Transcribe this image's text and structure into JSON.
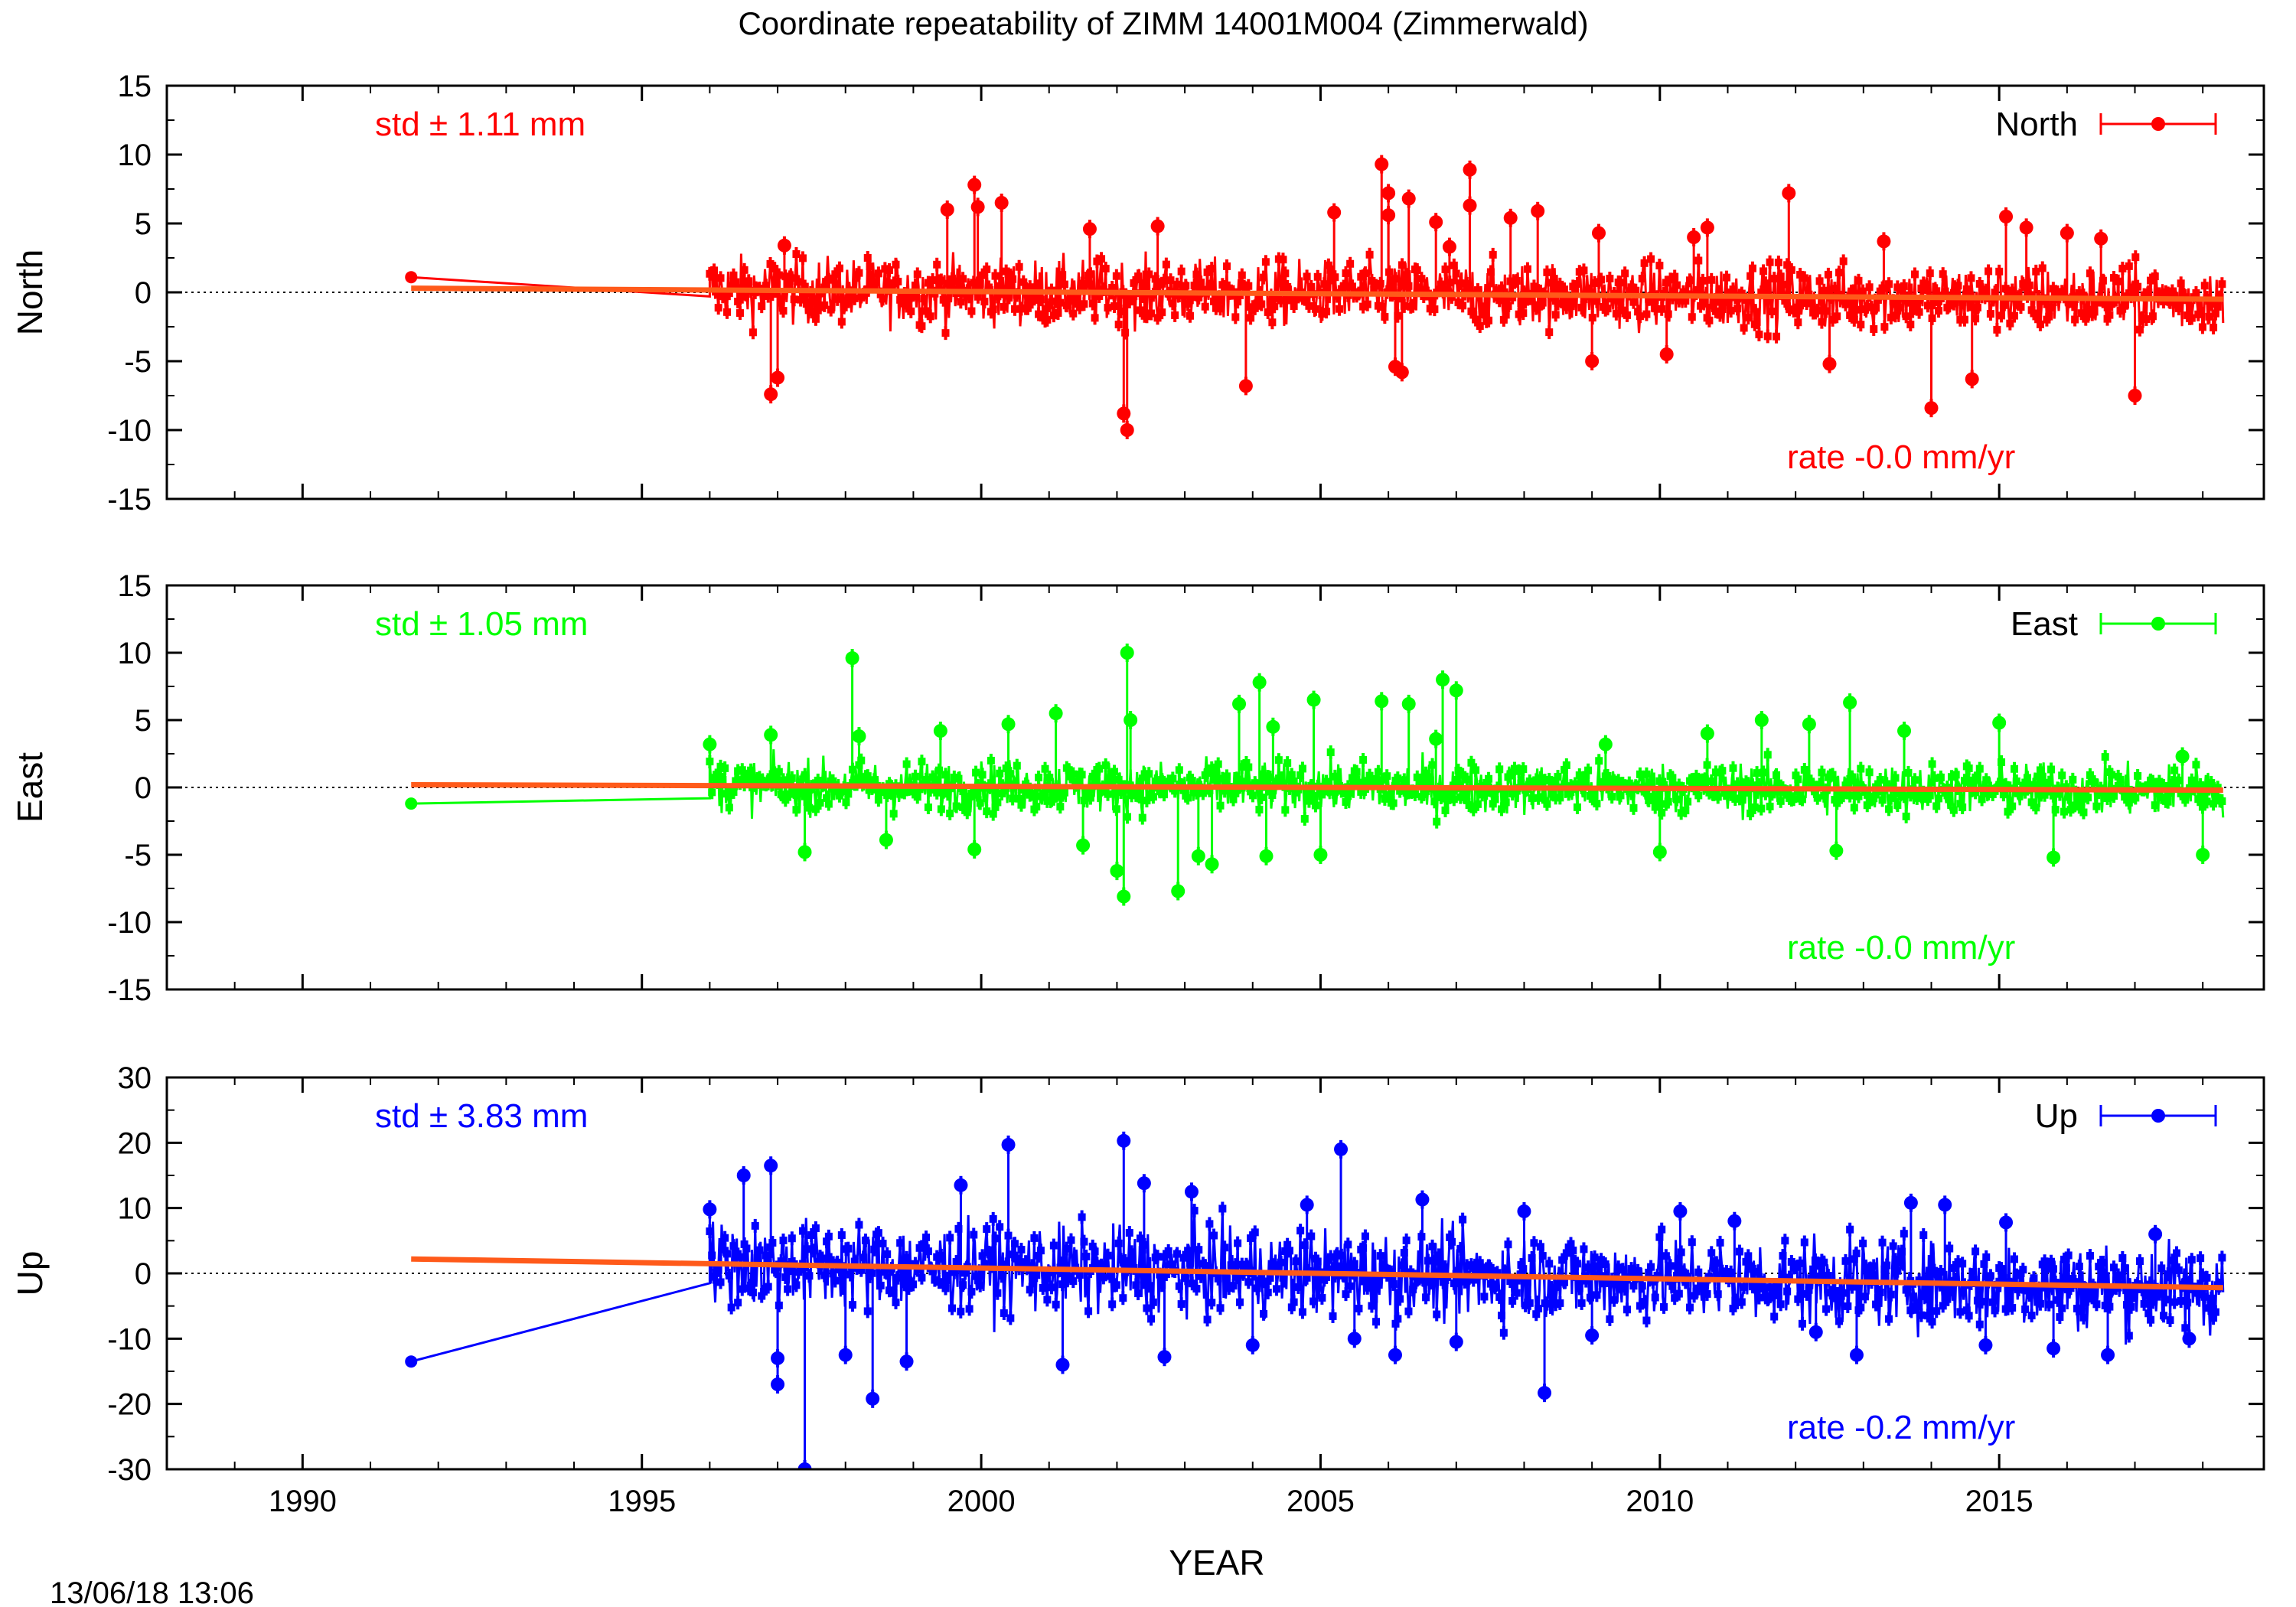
{
  "title": "Coordinate repeatability of ZIMM 14001M004 (Zimmerwald)",
  "timestamp": "13/06/18 13:06",
  "colors": {
    "north": "#ff0000",
    "east": "#00ff00",
    "up": "#0000ff",
    "trend": "#ff5a1a",
    "axis": "#000000"
  },
  "chart_data": {
    "type": "line",
    "xlabel": "YEAR",
    "xlim": [
      1988,
      2018.9
    ],
    "xticks": [
      {
        "value": 1990,
        "label": "1990"
      },
      {
        "value": 1995,
        "label": "1995"
      },
      {
        "value": 2000,
        "label": "2000"
      },
      {
        "value": 2005,
        "label": "2005"
      },
      {
        "value": 2010,
        "label": "2010"
      },
      {
        "value": 2015,
        "label": "2015"
      }
    ],
    "panels": [
      {
        "id": "north",
        "ylabel": "North",
        "legend": "North",
        "legend_position": "top-right",
        "std_label": "std ± 1.11 mm",
        "rate_label": "rate -0.0 mm/yr",
        "ylim": [
          -15,
          15
        ],
        "yticks": [
          {
            "value": 15,
            "label": "15"
          },
          {
            "value": 10,
            "label": "10"
          },
          {
            "value": 5,
            "label": "5"
          },
          {
            "value": 0,
            "label": "0"
          },
          {
            "value": -5,
            "label": "-5"
          },
          {
            "value": -10,
            "label": "-10"
          },
          {
            "value": -15,
            "label": "-15"
          }
        ],
        "first_point": [
          1991.6,
          1.1
        ],
        "series_start": [
          1996.0,
          -0.3
        ],
        "series_end": 2018.3,
        "band": [
          -2.5,
          2.5
        ],
        "trend": [
          [
            1991.6,
            0.3
          ],
          [
            2018.3,
            -0.5
          ]
        ],
        "outliers": [
          [
            1996.9,
            -7.4
          ],
          [
            1997.0,
            -6.2
          ],
          [
            1997.1,
            3.4
          ],
          [
            1999.5,
            6.0
          ],
          [
            1999.9,
            7.8
          ],
          [
            1999.95,
            6.2
          ],
          [
            2000.3,
            6.5
          ],
          [
            2001.6,
            4.6
          ],
          [
            2002.1,
            -8.8
          ],
          [
            2002.15,
            -10.0
          ],
          [
            2002.6,
            4.8
          ],
          [
            2003.9,
            -6.8
          ],
          [
            2005.2,
            5.8
          ],
          [
            2005.9,
            9.3
          ],
          [
            2006.0,
            7.2
          ],
          [
            2006.0,
            5.6
          ],
          [
            2006.1,
            -5.4
          ],
          [
            2006.2,
            -5.8
          ],
          [
            2006.3,
            6.8
          ],
          [
            2006.7,
            5.1
          ],
          [
            2006.9,
            3.3
          ],
          [
            2007.2,
            8.9
          ],
          [
            2007.2,
            6.3
          ],
          [
            2007.8,
            5.4
          ],
          [
            2008.2,
            5.9
          ],
          [
            2009.0,
            -5.0
          ],
          [
            2009.1,
            4.3
          ],
          [
            2010.1,
            -4.5
          ],
          [
            2010.5,
            4.0
          ],
          [
            2010.7,
            4.7
          ],
          [
            2011.9,
            7.2
          ],
          [
            2012.5,
            -5.2
          ],
          [
            2013.3,
            3.7
          ],
          [
            2014.0,
            -8.4
          ],
          [
            2014.6,
            -6.3
          ],
          [
            2015.1,
            5.5
          ],
          [
            2015.4,
            4.7
          ],
          [
            2016.0,
            4.3
          ],
          [
            2016.5,
            3.9
          ],
          [
            2017.0,
            -7.5
          ]
        ]
      },
      {
        "id": "east",
        "ylabel": "East",
        "legend": "East",
        "legend_position": "top-right",
        "std_label": "std ± 1.05 mm",
        "rate_label": "rate -0.0 mm/yr",
        "ylim": [
          -15,
          15
        ],
        "yticks": [
          {
            "value": 15,
            "label": "15"
          },
          {
            "value": 10,
            "label": "10"
          },
          {
            "value": 5,
            "label": "5"
          },
          {
            "value": 0,
            "label": "0"
          },
          {
            "value": -5,
            "label": "-5"
          },
          {
            "value": -10,
            "label": "-10"
          },
          {
            "value": -15,
            "label": "-15"
          }
        ],
        "first_point": [
          1991.6,
          -1.2
        ],
        "series_start": [
          1996.0,
          -0.8
        ],
        "series_end": 2018.3,
        "band": [
          -2.0,
          2.0
        ],
        "trend": [
          [
            1991.6,
            0.2
          ],
          [
            2018.3,
            -0.2
          ]
        ],
        "outliers": [
          [
            1996.0,
            3.2
          ],
          [
            1996.9,
            3.9
          ],
          [
            1997.4,
            -4.8
          ],
          [
            1998.1,
            9.6
          ],
          [
            1998.2,
            3.8
          ],
          [
            1998.6,
            -3.9
          ],
          [
            1999.4,
            4.2
          ],
          [
            1999.9,
            -4.6
          ],
          [
            2000.4,
            4.7
          ],
          [
            2001.1,
            5.5
          ],
          [
            2001.5,
            -4.3
          ],
          [
            2002.0,
            -6.2
          ],
          [
            2002.1,
            -8.1
          ],
          [
            2002.15,
            10.0
          ],
          [
            2002.2,
            5.0
          ],
          [
            2002.9,
            -7.7
          ],
          [
            2003.2,
            -5.1
          ],
          [
            2003.4,
            -5.7
          ],
          [
            2003.8,
            6.2
          ],
          [
            2004.1,
            7.8
          ],
          [
            2004.3,
            4.5
          ],
          [
            2004.2,
            -5.1
          ],
          [
            2004.9,
            6.5
          ],
          [
            2005.0,
            -5.0
          ],
          [
            2005.9,
            6.4
          ],
          [
            2006.3,
            6.2
          ],
          [
            2006.8,
            8.0
          ],
          [
            2007.0,
            7.2
          ],
          [
            2006.7,
            3.6
          ],
          [
            2009.2,
            3.2
          ],
          [
            2010.0,
            -4.8
          ],
          [
            2010.7,
            4.0
          ],
          [
            2011.5,
            5.0
          ],
          [
            2012.2,
            4.7
          ],
          [
            2012.6,
            -4.7
          ],
          [
            2012.8,
            6.3
          ],
          [
            2013.6,
            4.2
          ],
          [
            2015.0,
            4.8
          ],
          [
            2015.8,
            -5.2
          ],
          [
            2017.7,
            2.3
          ],
          [
            2018.0,
            -5.0
          ]
        ]
      },
      {
        "id": "up",
        "ylabel": "Up",
        "legend": "Up",
        "legend_position": "top-right",
        "std_label": "std ± 3.83 mm",
        "rate_label": "rate -0.2 mm/yr",
        "ylim": [
          -30,
          30
        ],
        "yticks": [
          {
            "value": 30,
            "label": "30"
          },
          {
            "value": 20,
            "label": "20"
          },
          {
            "value": 10,
            "label": "10"
          },
          {
            "value": 0,
            "label": "0"
          },
          {
            "value": -10,
            "label": "-10"
          },
          {
            "value": -20,
            "label": "-20"
          },
          {
            "value": -30,
            "label": "-30"
          }
        ],
        "first_point": [
          1991.6,
          -13.5
        ],
        "series_start": [
          1996.0,
          -1.5
        ],
        "series_end": 2018.3,
        "band": [
          -7.0,
          7.0
        ],
        "trend": [
          [
            1991.6,
            2.2
          ],
          [
            2018.3,
            -2.2
          ]
        ],
        "outliers": [
          [
            1996.0,
            9.8
          ],
          [
            1996.5,
            15.0
          ],
          [
            1996.9,
            16.5
          ],
          [
            1997.0,
            -17.0
          ],
          [
            1997.0,
            -13.0
          ],
          [
            1997.4,
            -30.0
          ],
          [
            1998.0,
            -12.5
          ],
          [
            1998.4,
            -19.2
          ],
          [
            1998.9,
            -13.5
          ],
          [
            1999.7,
            13.5
          ],
          [
            2000.4,
            19.7
          ],
          [
            2001.2,
            -14.0
          ],
          [
            2002.1,
            20.3
          ],
          [
            2002.4,
            13.8
          ],
          [
            2002.7,
            -12.8
          ],
          [
            2003.1,
            12.5
          ],
          [
            2004.0,
            -11.0
          ],
          [
            2004.8,
            10.5
          ],
          [
            2005.3,
            19.0
          ],
          [
            2005.5,
            -10.0
          ],
          [
            2006.1,
            -12.5
          ],
          [
            2006.5,
            11.3
          ],
          [
            2007.0,
            -10.5
          ],
          [
            2008.0,
            9.5
          ],
          [
            2008.3,
            -18.3
          ],
          [
            2009.0,
            -9.5
          ],
          [
            2010.3,
            9.5
          ],
          [
            2011.1,
            8.0
          ],
          [
            2012.3,
            -9.0
          ],
          [
            2012.9,
            -12.5
          ],
          [
            2013.7,
            10.8
          ],
          [
            2014.2,
            10.5
          ],
          [
            2014.8,
            -11.0
          ],
          [
            2015.1,
            7.8
          ],
          [
            2015.8,
            -11.5
          ],
          [
            2016.6,
            -12.5
          ],
          [
            2017.3,
            6.0
          ],
          [
            2017.8,
            -10.0
          ]
        ]
      }
    ]
  }
}
